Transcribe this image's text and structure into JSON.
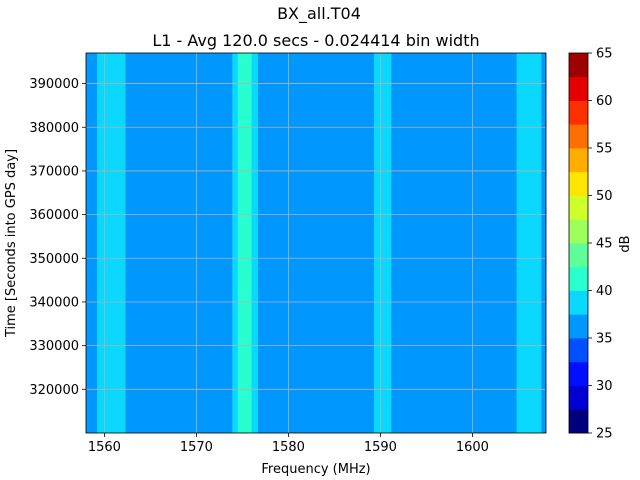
{
  "chart_data": {
    "type": "heatmap",
    "title": "BX_all.T04",
    "subtitle": "L1 - Avg 120.0 secs - 0.024414 bin width",
    "xlabel": "Frequency (MHz)",
    "ylabel": "Time [Seconds into GPS day]",
    "xlim": [
      1558,
      1608
    ],
    "ylim": [
      310000,
      397000
    ],
    "x_ticks": [
      1560,
      1570,
      1580,
      1590,
      1600
    ],
    "y_ticks": [
      320000,
      330000,
      340000,
      350000,
      360000,
      370000,
      380000,
      390000
    ],
    "grid": true,
    "background_level": 35,
    "bands": [
      {
        "x_start": 1559.2,
        "x_end": 1562.3,
        "level": 37.5
      },
      {
        "x_start": 1573.9,
        "x_end": 1576.7,
        "level": 37.5
      },
      {
        "x_start": 1574.5,
        "x_end": 1576.0,
        "level": 40
      },
      {
        "x_start": 1589.3,
        "x_end": 1591.2,
        "level": 37.5
      },
      {
        "x_start": 1604.8,
        "x_end": 1607.5,
        "level": 37.5
      }
    ],
    "colorbar": {
      "label": "dB",
      "min": 25,
      "max": 65,
      "ticks": [
        25,
        30,
        35,
        40,
        45,
        50,
        55,
        60,
        65
      ],
      "levels": [
        {
          "from": 25,
          "to": 27.5,
          "color": "#00007f"
        },
        {
          "from": 27.5,
          "to": 30,
          "color": "#0000d4"
        },
        {
          "from": 30,
          "to": 32.5,
          "color": "#0010ff"
        },
        {
          "from": 32.5,
          "to": 35,
          "color": "#0050ff"
        },
        {
          "from": 35,
          "to": 37.5,
          "color": "#0098ff"
        },
        {
          "from": 37.5,
          "to": 40,
          "color": "#0ad8ff"
        },
        {
          "from": 40,
          "to": 42.5,
          "color": "#29ffce"
        },
        {
          "from": 42.5,
          "to": 45,
          "color": "#5eff99"
        },
        {
          "from": 45,
          "to": 47.5,
          "color": "#9cff5a"
        },
        {
          "from": 47.5,
          "to": 50,
          "color": "#ceff29"
        },
        {
          "from": 50,
          "to": 52.5,
          "color": "#ffe600"
        },
        {
          "from": 52.5,
          "to": 55,
          "color": "#ffae00"
        },
        {
          "from": 55,
          "to": 57.5,
          "color": "#ff6f00"
        },
        {
          "from": 57.5,
          "to": 60,
          "color": "#ff3000"
        },
        {
          "from": 60,
          "to": 62.5,
          "color": "#e40000"
        },
        {
          "from": 62.5,
          "to": 65,
          "color": "#9f0000"
        }
      ]
    }
  }
}
